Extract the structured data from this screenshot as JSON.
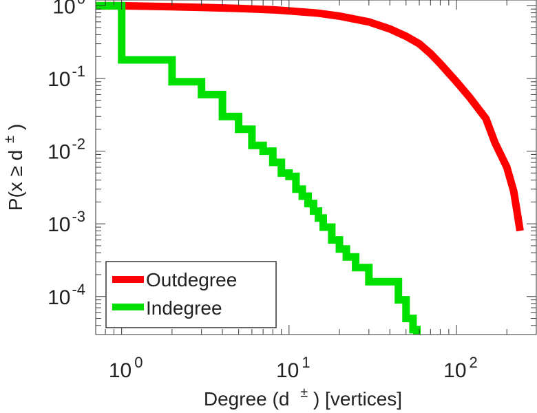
{
  "chart_data": {
    "type": "line",
    "title": "",
    "xlabel": {
      "base": "Degree (d",
      "sup": "±",
      "tail": ") [vertices]"
    },
    "ylabel": {
      "base": "P(x ≥ d",
      "sup": "±",
      "tail": ")"
    },
    "xscale": "log",
    "yscale": "log",
    "xlim": [
      0.7,
      300
    ],
    "ylim": [
      3e-05,
      1.2
    ],
    "grid": false,
    "legend_position": "bottom-left",
    "x_ticks": [
      {
        "base": "10",
        "exp": "0",
        "value": 1
      },
      {
        "base": "10",
        "exp": "1",
        "value": 10
      },
      {
        "base": "10",
        "exp": "2",
        "value": 100
      }
    ],
    "y_ticks": [
      {
        "base": "10",
        "exp": "0",
        "value": 1
      },
      {
        "base": "10",
        "exp": "-1",
        "value": 0.1
      },
      {
        "base": "10",
        "exp": "-2",
        "value": 0.01
      },
      {
        "base": "10",
        "exp": "-3",
        "value": 0.001
      },
      {
        "base": "10",
        "exp": "-4",
        "value": 0.0001
      }
    ],
    "series": [
      {
        "name": "Outdegree",
        "color": "#ff0000",
        "step": false,
        "x": [
          0.7,
          1,
          2,
          3,
          5,
          8,
          10,
          15,
          20,
          30,
          40,
          50,
          60,
          70,
          80,
          100,
          120,
          150,
          170,
          200,
          220,
          230,
          240
        ],
        "y": [
          1.0,
          1.0,
          0.97,
          0.95,
          0.92,
          0.88,
          0.85,
          0.79,
          0.72,
          0.6,
          0.48,
          0.38,
          0.3,
          0.22,
          0.16,
          0.09,
          0.055,
          0.028,
          0.013,
          0.006,
          0.0028,
          0.0015,
          0.0008
        ]
      },
      {
        "name": "Indegree",
        "color": "#00e000",
        "step": true,
        "x": [
          0.7,
          1,
          2,
          3,
          4,
          5,
          6,
          7,
          8,
          9,
          10,
          11,
          12,
          13,
          14,
          15,
          16,
          18,
          20,
          22,
          25,
          30,
          35,
          40,
          45,
          50,
          55,
          58
        ],
        "y": [
          1.0,
          0.18,
          0.09,
          0.06,
          0.03,
          0.02,
          0.012,
          0.01,
          0.007,
          0.005,
          0.0045,
          0.003,
          0.0024,
          0.0019,
          0.0015,
          0.0012,
          0.0009,
          0.0006,
          0.00045,
          0.00035,
          0.00025,
          0.00016,
          0.00016,
          0.00016,
          9e-05,
          5e-05,
          3.5e-05,
          3e-05
        ]
      }
    ]
  }
}
